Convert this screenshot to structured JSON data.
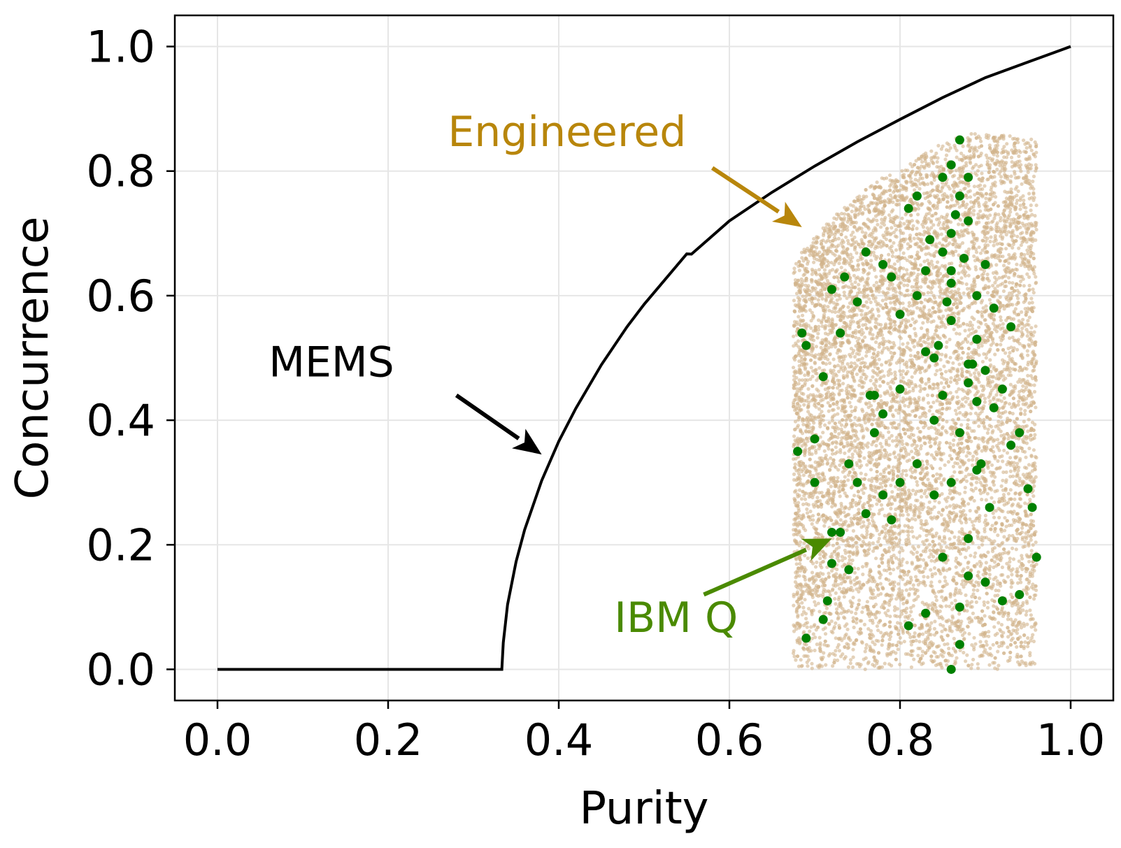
{
  "chart_data": {
    "type": "scatter",
    "title": "",
    "xlabel": "Purity",
    "ylabel": "Concurrence",
    "xlim": [
      -0.05,
      1.05
    ],
    "ylim": [
      -0.05,
      1.05
    ],
    "xticks": [
      "0.0",
      "0.2",
      "0.4",
      "0.6",
      "0.8",
      "1.0"
    ],
    "yticks": [
      "0.0",
      "0.2",
      "0.4",
      "0.6",
      "0.8",
      "1.0"
    ],
    "grid": true,
    "colors": {
      "mems": "#000000",
      "engineered_points": "#d2b48c",
      "engineered_label": "#b8860b",
      "ibm_points": "#008000",
      "ibm_label": "#4a8a00"
    },
    "series": [
      {
        "name": "MEMS",
        "kind": "line",
        "x": [
          0.0,
          0.3333,
          0.335,
          0.34,
          0.35,
          0.36,
          0.38,
          0.4,
          0.42,
          0.45,
          0.48,
          0.5,
          0.55,
          0.5556,
          0.6,
          0.65,
          0.7,
          0.75,
          0.8,
          0.85,
          0.9,
          0.95,
          1.0
        ],
        "y": [
          0.0,
          0.0,
          0.043,
          0.104,
          0.173,
          0.224,
          0.303,
          0.366,
          0.419,
          0.489,
          0.55,
          0.586,
          0.667,
          0.6667,
          0.72,
          0.766,
          0.808,
          0.847,
          0.883,
          0.918,
          0.95,
          0.975,
          1.0
        ]
      },
      {
        "name": "Engineered",
        "kind": "scatter-cloud",
        "purity_range": [
          0.675,
          0.96
        ],
        "concurrence_range": [
          0.0,
          0.86
        ],
        "upper_edge_x": [
          0.675,
          0.7,
          0.75,
          0.78,
          0.8,
          0.82,
          0.84,
          0.86,
          0.88,
          0.9,
          0.92,
          0.96
        ],
        "upper_edge_y": [
          0.65,
          0.7,
          0.76,
          0.79,
          0.8,
          0.82,
          0.84,
          0.85,
          0.86,
          0.86,
          0.86,
          0.85
        ]
      },
      {
        "name": "IBM Q",
        "kind": "scatter",
        "x": [
          0.68,
          0.685,
          0.69,
          0.7,
          0.71,
          0.715,
          0.72,
          0.73,
          0.735,
          0.74,
          0.75,
          0.76,
          0.765,
          0.77,
          0.78,
          0.79,
          0.8,
          0.81,
          0.82,
          0.83,
          0.835,
          0.84,
          0.845,
          0.85,
          0.855,
          0.86,
          0.865,
          0.87,
          0.875,
          0.88,
          0.885,
          0.89,
          0.895,
          0.9,
          0.905,
          0.91,
          0.92,
          0.93,
          0.94,
          0.95,
          0.96,
          0.72,
          0.74,
          0.76,
          0.78,
          0.8,
          0.82,
          0.84,
          0.86,
          0.88,
          0.9,
          0.92,
          0.94,
          0.955,
          0.81,
          0.83,
          0.85,
          0.87,
          0.89,
          0.91,
          0.93,
          0.86,
          0.88,
          0.84,
          0.86,
          0.87,
          0.89,
          0.85,
          0.88,
          0.86,
          0.87,
          0.88,
          0.85,
          0.83,
          0.9,
          0.82,
          0.79,
          0.77,
          0.75,
          0.73,
          0.71,
          0.7,
          0.69,
          0.72,
          0.78,
          0.8,
          0.86,
          0.87,
          0.88,
          0.89,
          0.86
        ],
        "y": [
          0.35,
          0.54,
          0.52,
          0.37,
          0.47,
          0.11,
          0.61,
          0.54,
          0.63,
          0.33,
          0.59,
          0.67,
          0.44,
          0.38,
          0.65,
          0.24,
          0.57,
          0.74,
          0.76,
          0.64,
          0.69,
          0.28,
          0.52,
          0.79,
          0.59,
          0.81,
          0.73,
          0.85,
          0.66,
          0.79,
          0.49,
          0.43,
          0.33,
          0.65,
          0.26,
          0.58,
          0.45,
          0.36,
          0.38,
          0.29,
          0.18,
          0.22,
          0.16,
          0.25,
          0.28,
          0.45,
          0.33,
          0.4,
          0.3,
          0.21,
          0.14,
          0.11,
          0.12,
          0.26,
          0.07,
          0.09,
          0.18,
          0.1,
          0.32,
          0.42,
          0.55,
          0.62,
          0.46,
          0.5,
          0.7,
          0.76,
          0.6,
          0.67,
          0.72,
          0.56,
          0.38,
          0.49,
          0.44,
          0.51,
          0.48,
          0.6,
          0.63,
          0.44,
          0.3,
          0.22,
          0.08,
          0.3,
          0.05,
          0.17,
          0.41,
          0.3,
          0.0,
          0.04,
          0.15,
          0.53,
          0.64
        ]
      }
    ],
    "annotations": [
      {
        "text": "MEMS",
        "color": "#000000",
        "text_at": [
          0.06,
          0.47
        ],
        "arrow_from": [
          0.28,
          0.44
        ],
        "arrow_to": [
          0.38,
          0.345
        ]
      },
      {
        "text": "Engineered",
        "color": "#b8860b",
        "text_at": [
          0.27,
          0.84
        ],
        "arrow_from": [
          0.58,
          0.805
        ],
        "arrow_to": [
          0.685,
          0.71
        ]
      },
      {
        "text": "IBM Q",
        "color": "#4a8a00",
        "text_at": [
          0.465,
          0.06
        ],
        "arrow_from": [
          0.57,
          0.12
        ],
        "arrow_to": [
          0.72,
          0.21
        ]
      }
    ]
  }
}
